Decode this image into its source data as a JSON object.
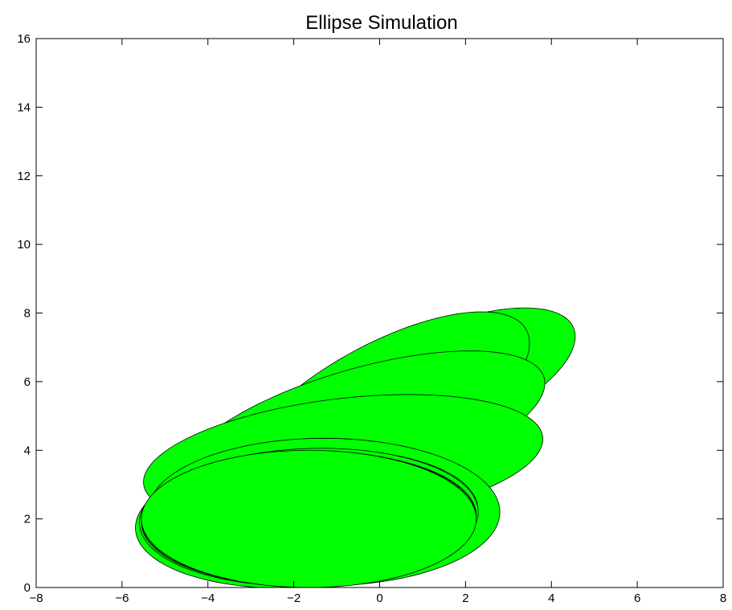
{
  "chart_data": {
    "type": "scatter",
    "title": "Ellipse Simulation",
    "xlabel": "",
    "ylabel": "",
    "xlim": [
      -8,
      8
    ],
    "ylim": [
      0,
      16
    ],
    "xticks": [
      -8,
      -6,
      -4,
      -2,
      0,
      2,
      4,
      6,
      8
    ],
    "yticks": [
      0,
      2,
      4,
      6,
      8,
      10,
      12,
      14,
      16
    ],
    "xtick_labels": [
      "−8",
      "−6",
      "−4",
      "−2",
      "0",
      "2",
      "4",
      "6",
      "8"
    ],
    "ytick_labels": [
      "0",
      "2",
      "4",
      "6",
      "8",
      "10",
      "12",
      "14",
      "16"
    ],
    "grid": false,
    "fill_color": "#00ff00",
    "edge_color": "#000000",
    "ellipses": [
      {
        "cx": 1.6,
        "cy": 6.05,
        "a": 3.3,
        "b": 1.5,
        "angle_deg": 30
      },
      {
        "cx": 0.05,
        "cy": 5.2,
        "a": 4.1,
        "b": 1.75,
        "angle_deg": 37
      },
      {
        "cx": -0.4,
        "cy": 4.6,
        "a": 4.5,
        "b": 1.75,
        "angle_deg": 21
      },
      {
        "cx": -0.85,
        "cy": 3.7,
        "a": 4.7,
        "b": 1.8,
        "angle_deg": 9
      },
      {
        "cx": -1.3,
        "cy": 2.2,
        "a": 4.1,
        "b": 2.15,
        "angle_deg": 0
      },
      {
        "cx": -1.7,
        "cy": 2.0,
        "a": 4.0,
        "b": 2.0,
        "angle_deg": 5
      },
      {
        "cx": -1.65,
        "cy": 2.05,
        "a": 3.95,
        "b": 2.0,
        "angle_deg": 3
      },
      {
        "cx": -1.65,
        "cy": 2.0,
        "a": 3.9,
        "b": 1.95,
        "angle_deg": 2
      },
      {
        "cx": -1.65,
        "cy": 2.0,
        "a": 3.9,
        "b": 1.98,
        "angle_deg": 1
      },
      {
        "cx": -1.65,
        "cy": 2.0,
        "a": 3.9,
        "b": 2.0,
        "angle_deg": 0
      }
    ]
  }
}
